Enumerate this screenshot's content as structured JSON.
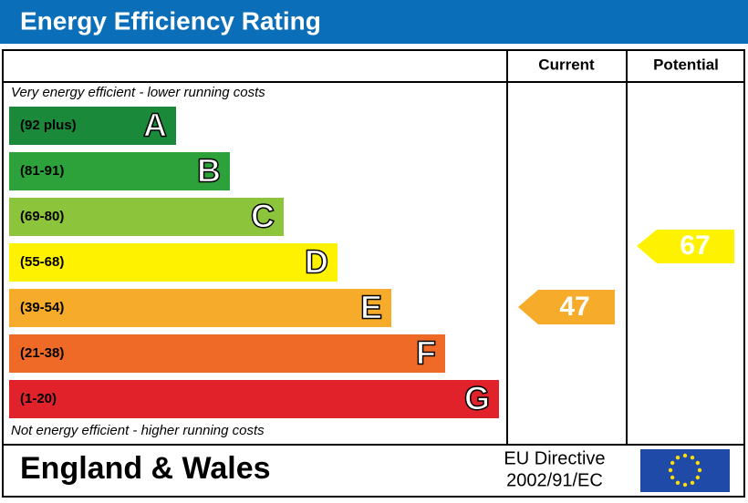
{
  "header": {
    "title": "Energy Efficiency Rating"
  },
  "columns": {
    "current": "Current",
    "potential": "Potential"
  },
  "top_note": "Very energy efficient - lower running costs",
  "bottom_note": "Not energy efficient - higher running costs",
  "bands": [
    {
      "range": "(92 plus)",
      "letter": "A",
      "color": "#1a8a3a"
    },
    {
      "range": "(81-91)",
      "letter": "B",
      "color": "#2ea23a"
    },
    {
      "range": "(69-80)",
      "letter": "C",
      "color": "#8cc43c"
    },
    {
      "range": "(55-68)",
      "letter": "D",
      "color": "#fff200"
    },
    {
      "range": "(39-54)",
      "letter": "E",
      "color": "#f6ab2a"
    },
    {
      "range": "(21-38)",
      "letter": "F",
      "color": "#ee6a26"
    },
    {
      "range": "(1-20)",
      "letter": "G",
      "color": "#e2222a"
    }
  ],
  "current": {
    "value": "47",
    "color": "#f6ab2a"
  },
  "potential": {
    "value": "67",
    "color": "#fff200"
  },
  "footer": {
    "region": "England & Wales",
    "directive": [
      "EU Directive",
      "2002/91/EC"
    ]
  }
}
